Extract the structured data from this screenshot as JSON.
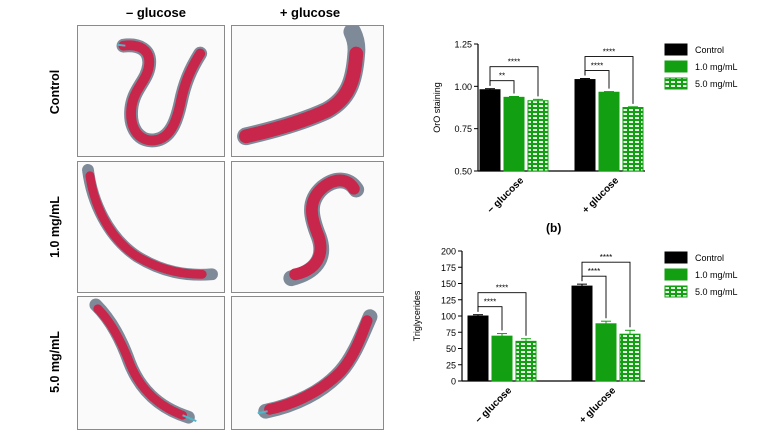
{
  "figure": {
    "column_headers": [
      "– glucose",
      "+ glucose"
    ],
    "row_labels": [
      "Control",
      "1.0 mg/mL",
      "5.0 mg/mL"
    ],
    "panel_b_label": "(b)"
  },
  "colors": {
    "control": "#000000",
    "dose_1": "#12a012",
    "dose_5_fill": "#b9e6b9",
    "dose_5_edge": "#12a012",
    "stain": "#c8264a",
    "worm_outline": "#7f8a99"
  },
  "chart_data": [
    {
      "type": "bar",
      "categories": [
        "− glucose",
        "+ glucose"
      ],
      "series": [
        {
          "name": "Control",
          "values": [
            0.98,
            1.04
          ],
          "errors": [
            0.006,
            0.006
          ]
        },
        {
          "name": "1.0 mg/mL",
          "values": [
            0.935,
            0.965
          ],
          "errors": [
            0.005,
            0.004
          ]
        },
        {
          "name": "5.0 mg/mL",
          "values": [
            0.915,
            0.875
          ],
          "errors": [
            0.008,
            0.004
          ]
        }
      ],
      "ylabel": "OrO staining",
      "ylim": [
        0.5,
        1.25
      ],
      "yticks": [
        "0.50",
        "0.75",
        "1.00",
        "1.25"
      ],
      "legend": "right",
      "significance": [
        {
          "group": 0,
          "to": 1,
          "label": "**"
        },
        {
          "group": 0,
          "to": 2,
          "label": "****"
        },
        {
          "group": 1,
          "to": 1,
          "label": "****"
        },
        {
          "group": 1,
          "to": 2,
          "label": "****"
        }
      ]
    },
    {
      "type": "bar",
      "categories": [
        "− glucose",
        "+ glucose"
      ],
      "series": [
        {
          "name": "Control",
          "values": [
            100,
            146
          ],
          "errors": [
            2,
            3
          ]
        },
        {
          "name": "1.0 mg/mL",
          "values": [
            69,
            88
          ],
          "errors": [
            4,
            4
          ]
        },
        {
          "name": "5.0 mg/mL",
          "values": [
            61,
            72
          ],
          "errors": [
            4,
            6
          ]
        }
      ],
      "ylabel": "Triglycerides",
      "ylim": [
        0,
        200
      ],
      "yticks": [
        "0",
        "25",
        "50",
        "75",
        "100",
        "125",
        "150",
        "175",
        "200"
      ],
      "legend": "right",
      "significance": [
        {
          "group": 0,
          "to": 1,
          "label": "****"
        },
        {
          "group": 0,
          "to": 2,
          "label": "****"
        },
        {
          "group": 1,
          "to": 1,
          "label": "****"
        },
        {
          "group": 1,
          "to": 2,
          "label": "****"
        }
      ]
    }
  ]
}
